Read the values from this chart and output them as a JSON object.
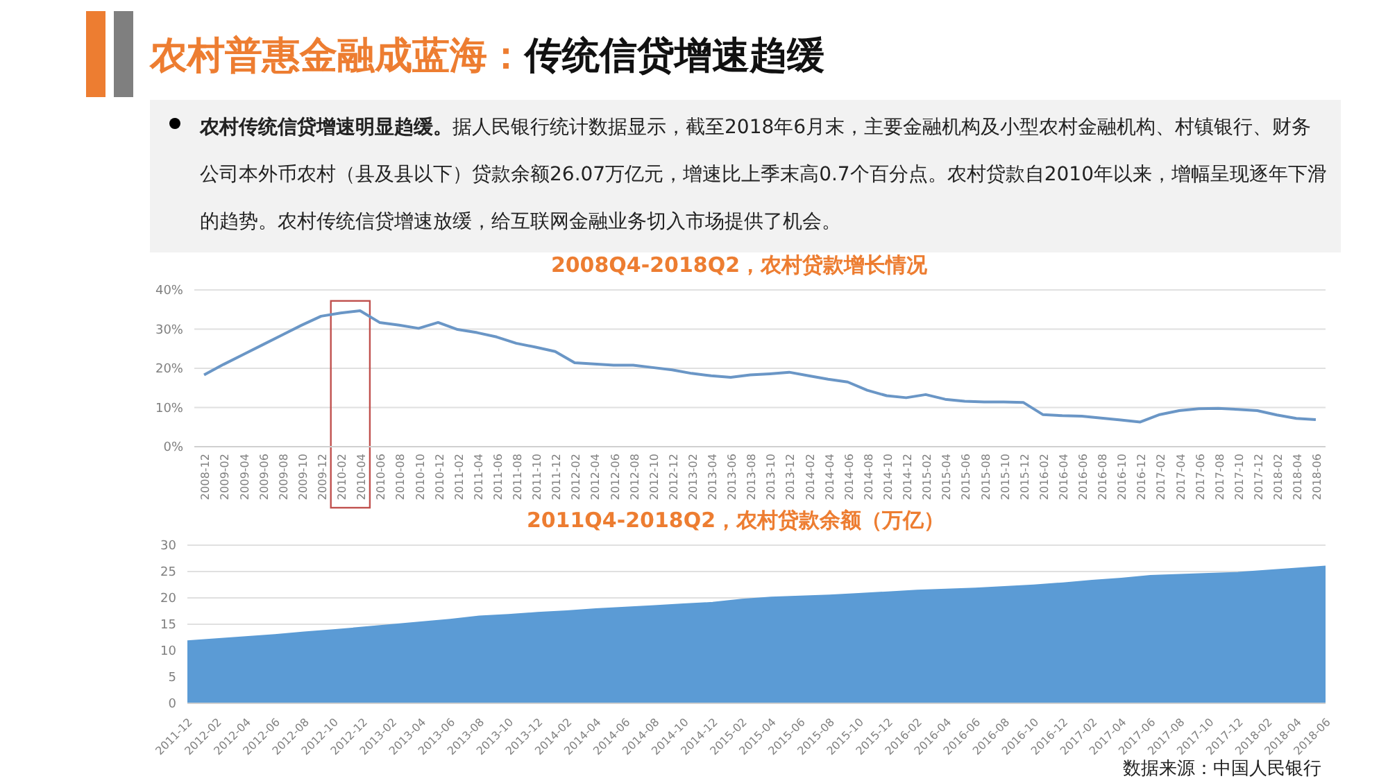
{
  "chart_data": [
    {
      "type": "line",
      "title": "2008Q4-2018Q2，农村贷款增长情况",
      "annotations": [
        "农村普惠金融成蓝海：",
        "传统信贷增速趋缓",
        "农村传统信贷增速明显趋缓。",
        "据人民银行统计数据显示，截至2018年6月末，主要金融机构及小型农村金融机构、村镇银行、财务公司本外币农村（县及县以下）贷款余额26.07万亿元，增速比上季末高0.7个百分点。农村贷款自2010年以来，增幅呈现逐年下滑的趋势。农村传统信贷增速放缓，给互联网金融业务切入市场提供了机会。"
      ],
      "categories": [
        "2008-12",
        "2009-02",
        "2009-04",
        "2009-06",
        "2009-08",
        "2009-10",
        "2009-12",
        "2010-02",
        "2010-04",
        "2010-06",
        "2010-08",
        "2010-10",
        "2010-12",
        "2011-02",
        "2011-04",
        "2011-06",
        "2011-08",
        "2011-10",
        "2011-12",
        "2012-02",
        "2012-04",
        "2012-06",
        "2012-08",
        "2012-10",
        "2012-12",
        "2013-02",
        "2013-04",
        "2013-06",
        "2013-08",
        "2013-10",
        "2013-12",
        "2014-02",
        "2014-04",
        "2014-06",
        "2014-08",
        "2014-10",
        "2014-12",
        "2015-02",
        "2015-04",
        "2015-06",
        "2015-08",
        "2015-10",
        "2015-12",
        "2016-02",
        "2016-04",
        "2016-06",
        "2016-08",
        "2016-10",
        "2016-12",
        "2017-02",
        "2017-04",
        "2017-06",
        "2017-08",
        "2017-10",
        "2017-12",
        "2018-02",
        "2018-04",
        "2018-06"
      ],
      "series": [
        {
          "color": "#6a96c6",
          "values": [
            18.3,
            21,
            23.5,
            26,
            28.5,
            31,
            33.3,
            34.1,
            34.7,
            31.7,
            31,
            30.2,
            31.7,
            29.9,
            29.1,
            28,
            26.4,
            25.4,
            24.3,
            21.4,
            21.1,
            20.8,
            20.8,
            20.2,
            19.6,
            18.7,
            18.1,
            17.7,
            18.3,
            18.6,
            19,
            18.1,
            17.2,
            16.5,
            14.4,
            13,
            12.5,
            13.3,
            12.1,
            11.6,
            11.4,
            11.4,
            11.3,
            8.2,
            7.9,
            7.8,
            7.3,
            6.8,
            6.3,
            8.2,
            9.2,
            9.7,
            9.8,
            9.5,
            9.2,
            8.1,
            7.2,
            6.9
          ]
        }
      ],
      "ylim": [
        0,
        40
      ],
      "yticks": [
        {
          "value": 0,
          "label": "0%"
        },
        {
          "value": 10,
          "label": "10%"
        },
        {
          "value": 20,
          "label": "20%"
        },
        {
          "value": 30,
          "label": "30%"
        },
        {
          "value": 40,
          "label": "40%"
        }
      ],
      "grid": "y",
      "marker": "none",
      "line_style": "solid"
    },
    {
      "type": "area",
      "title": "2011Q4-2018Q2，农村贷款余额（万亿）",
      "annotations": [
        "数据来源：中国人民银行"
      ],
      "categories": [
        "2011-12",
        "2012-02",
        "2012-04",
        "2012-06",
        "2012-08",
        "2012-10",
        "2012-12",
        "2013-02",
        "2013-04",
        "2013-06",
        "2013-08",
        "2013-10",
        "2013-12",
        "2014-02",
        "2014-04",
        "2014-06",
        "2014-08",
        "2014-10",
        "2014-12",
        "2015-02",
        "2015-04",
        "2015-06",
        "2015-08",
        "2015-10",
        "2015-12",
        "2016-02",
        "2016-04",
        "2016-06",
        "2016-08",
        "2016-10",
        "2016-12",
        "2017-02",
        "2017-04",
        "2017-06",
        "2017-08",
        "2017-10",
        "2017-12",
        "2018-02",
        "2018-04",
        "2018-06"
      ],
      "series": [
        {
          "color": "#5b9bd5",
          "values": [
            11.8,
            12.2,
            12.6,
            13,
            13.5,
            13.9,
            14.4,
            14.9,
            15.4,
            15.9,
            16.5,
            16.8,
            17.2,
            17.5,
            17.9,
            18.2,
            18.5,
            18.8,
            19.1,
            19.7,
            20.1,
            20.3,
            20.5,
            20.8,
            21.1,
            21.4,
            21.6,
            21.8,
            22.1,
            22.4,
            22.8,
            23.3,
            23.7,
            24.2,
            24.4,
            24.6,
            24.8,
            25.2,
            25.6,
            26
          ]
        }
      ],
      "ylim": [
        0,
        30
      ],
      "yticks": [
        0,
        5,
        10,
        15,
        20,
        25,
        30
      ],
      "grid": "y"
    }
  ]
}
